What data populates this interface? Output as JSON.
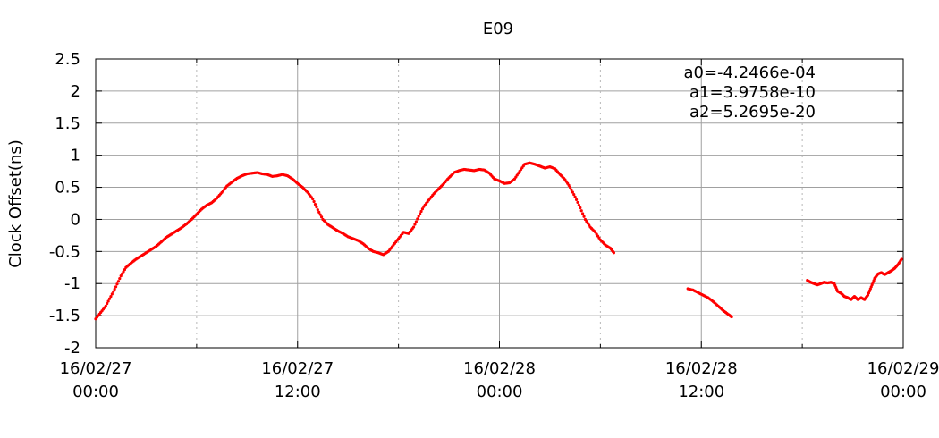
{
  "chart_data": {
    "type": "scatter",
    "title": "E09",
    "ylabel": "Clock Offset(ns)",
    "xlabel": "",
    "xlim": [
      0,
      48
    ],
    "ylim": [
      -2,
      2.5
    ],
    "x_unit": "hours from 16/02/27 00:00",
    "x_ticks": [
      {
        "x": 0,
        "line1": "16/02/27",
        "line2": "00:00"
      },
      {
        "x": 12,
        "line1": "16/02/27",
        "line2": "12:00"
      },
      {
        "x": 24,
        "line1": "16/02/28",
        "line2": "00:00"
      },
      {
        "x": 36,
        "line1": "16/02/28",
        "line2": "12:00"
      },
      {
        "x": 48,
        "line1": "16/02/29",
        "line2": "00:00"
      }
    ],
    "y_ticks": [
      -2,
      -1.5,
      -1,
      -0.5,
      0,
      0.5,
      1,
      1.5,
      2,
      2.5
    ],
    "y_tick_labels": [
      "-2",
      "-1.5",
      "-1",
      "-0.5",
      "0",
      "0.5",
      "1",
      "1.5",
      "2",
      "2.5"
    ],
    "grid": true,
    "marker_color": "#ff0000",
    "annotations": [
      "a0=-4.2466e-04",
      "a1=3.9758e-10",
      "a2=5.2695e-20"
    ],
    "series": [
      {
        "name": "",
        "segments": [
          [
            [
              0.0,
              -1.55
            ],
            [
              0.3,
              -1.45
            ],
            [
              0.6,
              -1.35
            ],
            [
              0.9,
              -1.2
            ],
            [
              1.2,
              -1.05
            ],
            [
              1.5,
              -0.88
            ],
            [
              1.8,
              -0.75
            ],
            [
              2.1,
              -0.68
            ],
            [
              2.4,
              -0.62
            ],
            [
              2.7,
              -0.57
            ],
            [
              3.0,
              -0.52
            ],
            [
              3.3,
              -0.47
            ],
            [
              3.6,
              -0.42
            ],
            [
              3.9,
              -0.35
            ],
            [
              4.2,
              -0.28
            ],
            [
              4.5,
              -0.23
            ],
            [
              4.8,
              -0.18
            ],
            [
              5.1,
              -0.13
            ],
            [
              5.4,
              -0.07
            ],
            [
              5.7,
              0.0
            ],
            [
              6.0,
              0.08
            ],
            [
              6.3,
              0.16
            ],
            [
              6.6,
              0.22
            ],
            [
              6.9,
              0.26
            ],
            [
              7.2,
              0.33
            ],
            [
              7.5,
              0.42
            ],
            [
              7.8,
              0.52
            ],
            [
              8.1,
              0.58
            ],
            [
              8.4,
              0.64
            ],
            [
              8.7,
              0.68
            ],
            [
              9.0,
              0.71
            ],
            [
              9.3,
              0.72
            ],
            [
              9.6,
              0.73
            ],
            [
              9.9,
              0.71
            ],
            [
              10.2,
              0.7
            ],
            [
              10.5,
              0.67
            ],
            [
              10.8,
              0.68
            ],
            [
              11.1,
              0.7
            ],
            [
              11.4,
              0.68
            ],
            [
              11.7,
              0.63
            ],
            [
              12.0,
              0.56
            ],
            [
              12.3,
              0.5
            ],
            [
              12.6,
              0.42
            ],
            [
              12.9,
              0.32
            ],
            [
              13.2,
              0.15
            ],
            [
              13.5,
              0.0
            ],
            [
              13.8,
              -0.08
            ],
            [
              14.1,
              -0.13
            ],
            [
              14.4,
              -0.18
            ],
            [
              14.7,
              -0.22
            ],
            [
              15.0,
              -0.27
            ],
            [
              15.3,
              -0.3
            ],
            [
              15.6,
              -0.33
            ],
            [
              15.9,
              -0.38
            ],
            [
              16.2,
              -0.45
            ],
            [
              16.5,
              -0.5
            ],
            [
              16.8,
              -0.52
            ],
            [
              17.1,
              -0.55
            ],
            [
              17.4,
              -0.5
            ],
            [
              17.7,
              -0.4
            ],
            [
              18.0,
              -0.3
            ],
            [
              18.3,
              -0.2
            ],
            [
              18.6,
              -0.22
            ],
            [
              18.9,
              -0.12
            ],
            [
              19.2,
              0.05
            ],
            [
              19.5,
              0.2
            ],
            [
              19.8,
              0.3
            ],
            [
              20.1,
              0.4
            ],
            [
              20.4,
              0.48
            ],
            [
              20.7,
              0.56
            ],
            [
              21.0,
              0.65
            ],
            [
              21.3,
              0.73
            ],
            [
              21.6,
              0.76
            ],
            [
              21.9,
              0.78
            ],
            [
              22.2,
              0.77
            ],
            [
              22.5,
              0.76
            ],
            [
              22.8,
              0.78
            ],
            [
              23.1,
              0.77
            ],
            [
              23.4,
              0.72
            ],
            [
              23.7,
              0.63
            ],
            [
              24.0,
              0.6
            ],
            [
              24.3,
              0.56
            ],
            [
              24.6,
              0.57
            ],
            [
              24.9,
              0.63
            ],
            [
              25.2,
              0.75
            ],
            [
              25.5,
              0.86
            ],
            [
              25.8,
              0.88
            ],
            [
              26.1,
              0.86
            ],
            [
              26.4,
              0.83
            ],
            [
              26.7,
              0.8
            ],
            [
              27.0,
              0.82
            ],
            [
              27.3,
              0.79
            ],
            [
              27.6,
              0.7
            ],
            [
              27.9,
              0.62
            ],
            [
              28.2,
              0.5
            ],
            [
              28.5,
              0.35
            ],
            [
              28.8,
              0.18
            ],
            [
              29.1,
              0.0
            ],
            [
              29.4,
              -0.12
            ],
            [
              29.7,
              -0.2
            ],
            [
              30.0,
              -0.32
            ],
            [
              30.3,
              -0.4
            ],
            [
              30.6,
              -0.45
            ],
            [
              30.8,
              -0.52
            ]
          ],
          [
            [
              35.2,
              -1.08
            ],
            [
              35.5,
              -1.1
            ],
            [
              35.8,
              -1.14
            ],
            [
              36.1,
              -1.18
            ],
            [
              36.4,
              -1.22
            ],
            [
              36.7,
              -1.28
            ],
            [
              37.0,
              -1.35
            ],
            [
              37.3,
              -1.42
            ],
            [
              37.6,
              -1.48
            ],
            [
              37.8,
              -1.52
            ]
          ],
          [
            [
              42.3,
              -0.95
            ],
            [
              42.5,
              -0.98
            ],
            [
              42.7,
              -1.0
            ],
            [
              42.9,
              -1.02
            ],
            [
              43.1,
              -1.0
            ],
            [
              43.3,
              -0.98
            ],
            [
              43.5,
              -0.99
            ],
            [
              43.7,
              -0.98
            ],
            [
              43.9,
              -1.0
            ],
            [
              44.1,
              -1.12
            ],
            [
              44.3,
              -1.15
            ],
            [
              44.5,
              -1.2
            ],
            [
              44.7,
              -1.22
            ],
            [
              44.9,
              -1.25
            ],
            [
              45.1,
              -1.2
            ],
            [
              45.3,
              -1.25
            ],
            [
              45.5,
              -1.22
            ],
            [
              45.7,
              -1.25
            ],
            [
              45.9,
              -1.18
            ],
            [
              46.1,
              -1.05
            ],
            [
              46.3,
              -0.92
            ],
            [
              46.5,
              -0.85
            ],
            [
              46.7,
              -0.83
            ],
            [
              46.9,
              -0.86
            ],
            [
              47.1,
              -0.83
            ],
            [
              47.3,
              -0.8
            ],
            [
              47.5,
              -0.76
            ],
            [
              47.7,
              -0.7
            ],
            [
              47.9,
              -0.62
            ]
          ]
        ]
      }
    ]
  }
}
